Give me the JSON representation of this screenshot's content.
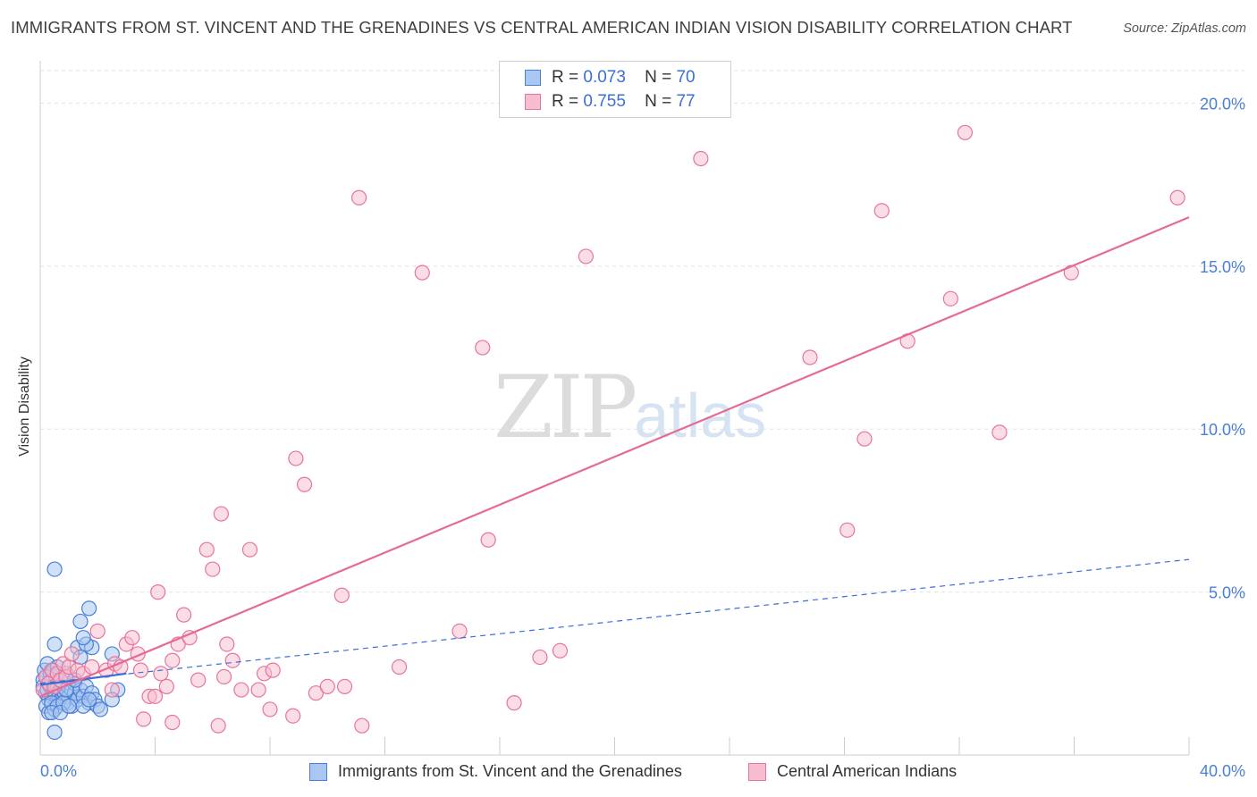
{
  "title": "IMMIGRANTS FROM ST. VINCENT AND THE GRENADINES VS CENTRAL AMERICAN INDIAN VISION DISABILITY CORRELATION CHART",
  "source": "Source: ZipAtlas.com",
  "watermark": {
    "zip": "ZIP",
    "atlas": "atlas"
  },
  "legend": {
    "r_label": "R =",
    "n_label": "N =",
    "series1_r": "0.073",
    "series1_n": "70",
    "series2_r": "0.755",
    "series2_n": "77"
  },
  "bottom_legend": {
    "series1": "Immigrants from St. Vincent and the Grenadines",
    "series2": "Central American Indians"
  },
  "colors": {
    "blue_fill": "#a9c7f0",
    "blue_stroke": "#4a7fd6",
    "pink_fill": "#f7bccd",
    "pink_stroke": "#e8749a",
    "pink_line": "#e46b94",
    "blue_line": "#3a6fd8",
    "tick_label": "#4a7fd6"
  },
  "chart_data": {
    "type": "scatter",
    "title": "IMMIGRANTS FROM ST. VINCENT AND THE GRENADINES VS CENTRAL AMERICAN INDIAN VISION DISABILITY CORRELATION CHART",
    "xlabel": "",
    "ylabel": "Vision Disability",
    "xlim": [
      0,
      40
    ],
    "ylim": [
      0,
      21
    ],
    "x_tick_labels": [
      "0.0%",
      "40.0%"
    ],
    "y_ticks": [
      5,
      10,
      15,
      20
    ],
    "y_tick_labels": [
      "5.0%",
      "10.0%",
      "15.0%",
      "20.0%"
    ],
    "grid": true,
    "legend_position": "top-center",
    "series": [
      {
        "name": "Immigrants from St. Vincent and the Grenadines",
        "color": "#a9c7f0",
        "R": 0.073,
        "N": 70,
        "trend": {
          "x": [
            0,
            40
          ],
          "y": [
            2.2,
            6.0
          ],
          "style": "dashed"
        },
        "trend_solid": {
          "x": [
            0,
            3.0
          ],
          "y": [
            2.15,
            2.5
          ]
        },
        "points": [
          [
            0.1,
            2.3
          ],
          [
            0.1,
            2.1
          ],
          [
            0.15,
            2.6
          ],
          [
            0.2,
            1.9
          ],
          [
            0.2,
            2.4
          ],
          [
            0.25,
            2.0
          ],
          [
            0.25,
            2.8
          ],
          [
            0.3,
            2.2
          ],
          [
            0.3,
            1.7
          ],
          [
            0.35,
            2.5
          ],
          [
            0.35,
            2.1
          ],
          [
            0.4,
            1.8
          ],
          [
            0.4,
            2.3
          ],
          [
            0.45,
            2.0
          ],
          [
            0.45,
            2.6
          ],
          [
            0.5,
            1.9
          ],
          [
            0.5,
            2.2
          ],
          [
            0.55,
            2.4
          ],
          [
            0.55,
            1.6
          ],
          [
            0.6,
            2.1
          ],
          [
            0.6,
            2.7
          ],
          [
            0.65,
            1.8
          ],
          [
            0.7,
            2.3
          ],
          [
            0.7,
            2.0
          ],
          [
            0.75,
            1.7
          ],
          [
            0.8,
            2.2
          ],
          [
            0.85,
            1.9
          ],
          [
            0.9,
            2.5
          ],
          [
            0.95,
            1.6
          ],
          [
            1.0,
            2.1
          ],
          [
            1.0,
            1.8
          ],
          [
            1.1,
            2.0
          ],
          [
            1.1,
            1.5
          ],
          [
            1.2,
            1.9
          ],
          [
            1.2,
            2.2
          ],
          [
            1.3,
            1.7
          ],
          [
            1.4,
            2.0
          ],
          [
            1.5,
            1.8
          ],
          [
            1.6,
            2.1
          ],
          [
            1.7,
            1.6
          ],
          [
            1.8,
            1.9
          ],
          [
            1.9,
            1.7
          ],
          [
            2.0,
            1.5
          ],
          [
            2.1,
            1.4
          ],
          [
            0.2,
            1.5
          ],
          [
            0.3,
            1.3
          ],
          [
            0.5,
            1.4
          ],
          [
            0.4,
            1.6
          ],
          [
            0.6,
            1.5
          ],
          [
            0.8,
            1.6
          ],
          [
            0.5,
            5.7
          ],
          [
            1.7,
            4.5
          ],
          [
            1.4,
            4.1
          ],
          [
            0.5,
            3.4
          ],
          [
            1.3,
            3.3
          ],
          [
            1.8,
            3.3
          ],
          [
            1.4,
            3.0
          ],
          [
            2.5,
            3.1
          ],
          [
            1.6,
            3.4
          ],
          [
            1.5,
            3.6
          ],
          [
            0.5,
            0.7
          ],
          [
            0.4,
            1.3
          ],
          [
            0.7,
            1.3
          ],
          [
            2.7,
            2.0
          ],
          [
            2.5,
            1.7
          ],
          [
            1.0,
            1.5
          ],
          [
            1.5,
            1.5
          ],
          [
            1.7,
            1.7
          ],
          [
            0.9,
            2.0
          ],
          [
            1.2,
            2.3
          ]
        ]
      },
      {
        "name": "Central American Indians",
        "color": "#f7bccd",
        "R": 0.755,
        "N": 77,
        "trend": {
          "x": [
            0,
            40
          ],
          "y": [
            1.8,
            16.5
          ],
          "style": "solid"
        },
        "points": [
          [
            0.1,
            2.0
          ],
          [
            0.2,
            2.4
          ],
          [
            0.3,
            2.2
          ],
          [
            0.4,
            2.6
          ],
          [
            0.5,
            2.1
          ],
          [
            0.6,
            2.5
          ],
          [
            0.7,
            2.3
          ],
          [
            0.8,
            2.8
          ],
          [
            0.9,
            2.4
          ],
          [
            1.0,
            2.7
          ],
          [
            1.1,
            3.1
          ],
          [
            1.3,
            2.6
          ],
          [
            1.5,
            2.5
          ],
          [
            1.8,
            2.7
          ],
          [
            2.0,
            3.8
          ],
          [
            2.3,
            2.6
          ],
          [
            2.5,
            2.0
          ],
          [
            2.6,
            2.8
          ],
          [
            2.8,
            2.7
          ],
          [
            3.0,
            3.4
          ],
          [
            3.2,
            3.6
          ],
          [
            3.4,
            3.1
          ],
          [
            3.5,
            2.6
          ],
          [
            3.8,
            1.8
          ],
          [
            4.0,
            1.8
          ],
          [
            4.2,
            2.5
          ],
          [
            4.4,
            2.1
          ],
          [
            4.6,
            2.9
          ],
          [
            4.8,
            3.4
          ],
          [
            5.0,
            4.3
          ],
          [
            5.2,
            3.6
          ],
          [
            5.5,
            2.3
          ],
          [
            5.8,
            6.3
          ],
          [
            6.0,
            5.7
          ],
          [
            6.3,
            7.4
          ],
          [
            6.5,
            3.4
          ],
          [
            6.7,
            2.9
          ],
          [
            7.0,
            2.0
          ],
          [
            7.3,
            6.3
          ],
          [
            7.6,
            2.0
          ],
          [
            7.8,
            2.5
          ],
          [
            8.1,
            2.6
          ],
          [
            8.0,
            1.4
          ],
          [
            8.9,
            9.1
          ],
          [
            9.2,
            8.3
          ],
          [
            9.6,
            1.9
          ],
          [
            10.0,
            2.1
          ],
          [
            10.6,
            2.1
          ],
          [
            10.5,
            4.9
          ],
          [
            11.1,
            17.1
          ],
          [
            11.2,
            0.9
          ],
          [
            12.5,
            2.7
          ],
          [
            13.3,
            14.8
          ],
          [
            14.6,
            3.8
          ],
          [
            15.4,
            12.5
          ],
          [
            15.6,
            6.6
          ],
          [
            16.5,
            1.6
          ],
          [
            17.4,
            3.0
          ],
          [
            18.1,
            3.2
          ],
          [
            19.0,
            15.3
          ],
          [
            23.0,
            18.3
          ],
          [
            26.8,
            12.2
          ],
          [
            28.1,
            6.9
          ],
          [
            28.7,
            9.7
          ],
          [
            29.3,
            16.7
          ],
          [
            30.2,
            12.7
          ],
          [
            31.7,
            14.0
          ],
          [
            32.2,
            19.1
          ],
          [
            33.4,
            9.9
          ],
          [
            35.9,
            14.8
          ],
          [
            39.6,
            17.1
          ],
          [
            4.6,
            1.0
          ],
          [
            4.1,
            5.0
          ],
          [
            3.6,
            1.1
          ],
          [
            6.2,
            0.9
          ],
          [
            8.8,
            1.2
          ],
          [
            6.4,
            2.4
          ]
        ]
      }
    ]
  }
}
